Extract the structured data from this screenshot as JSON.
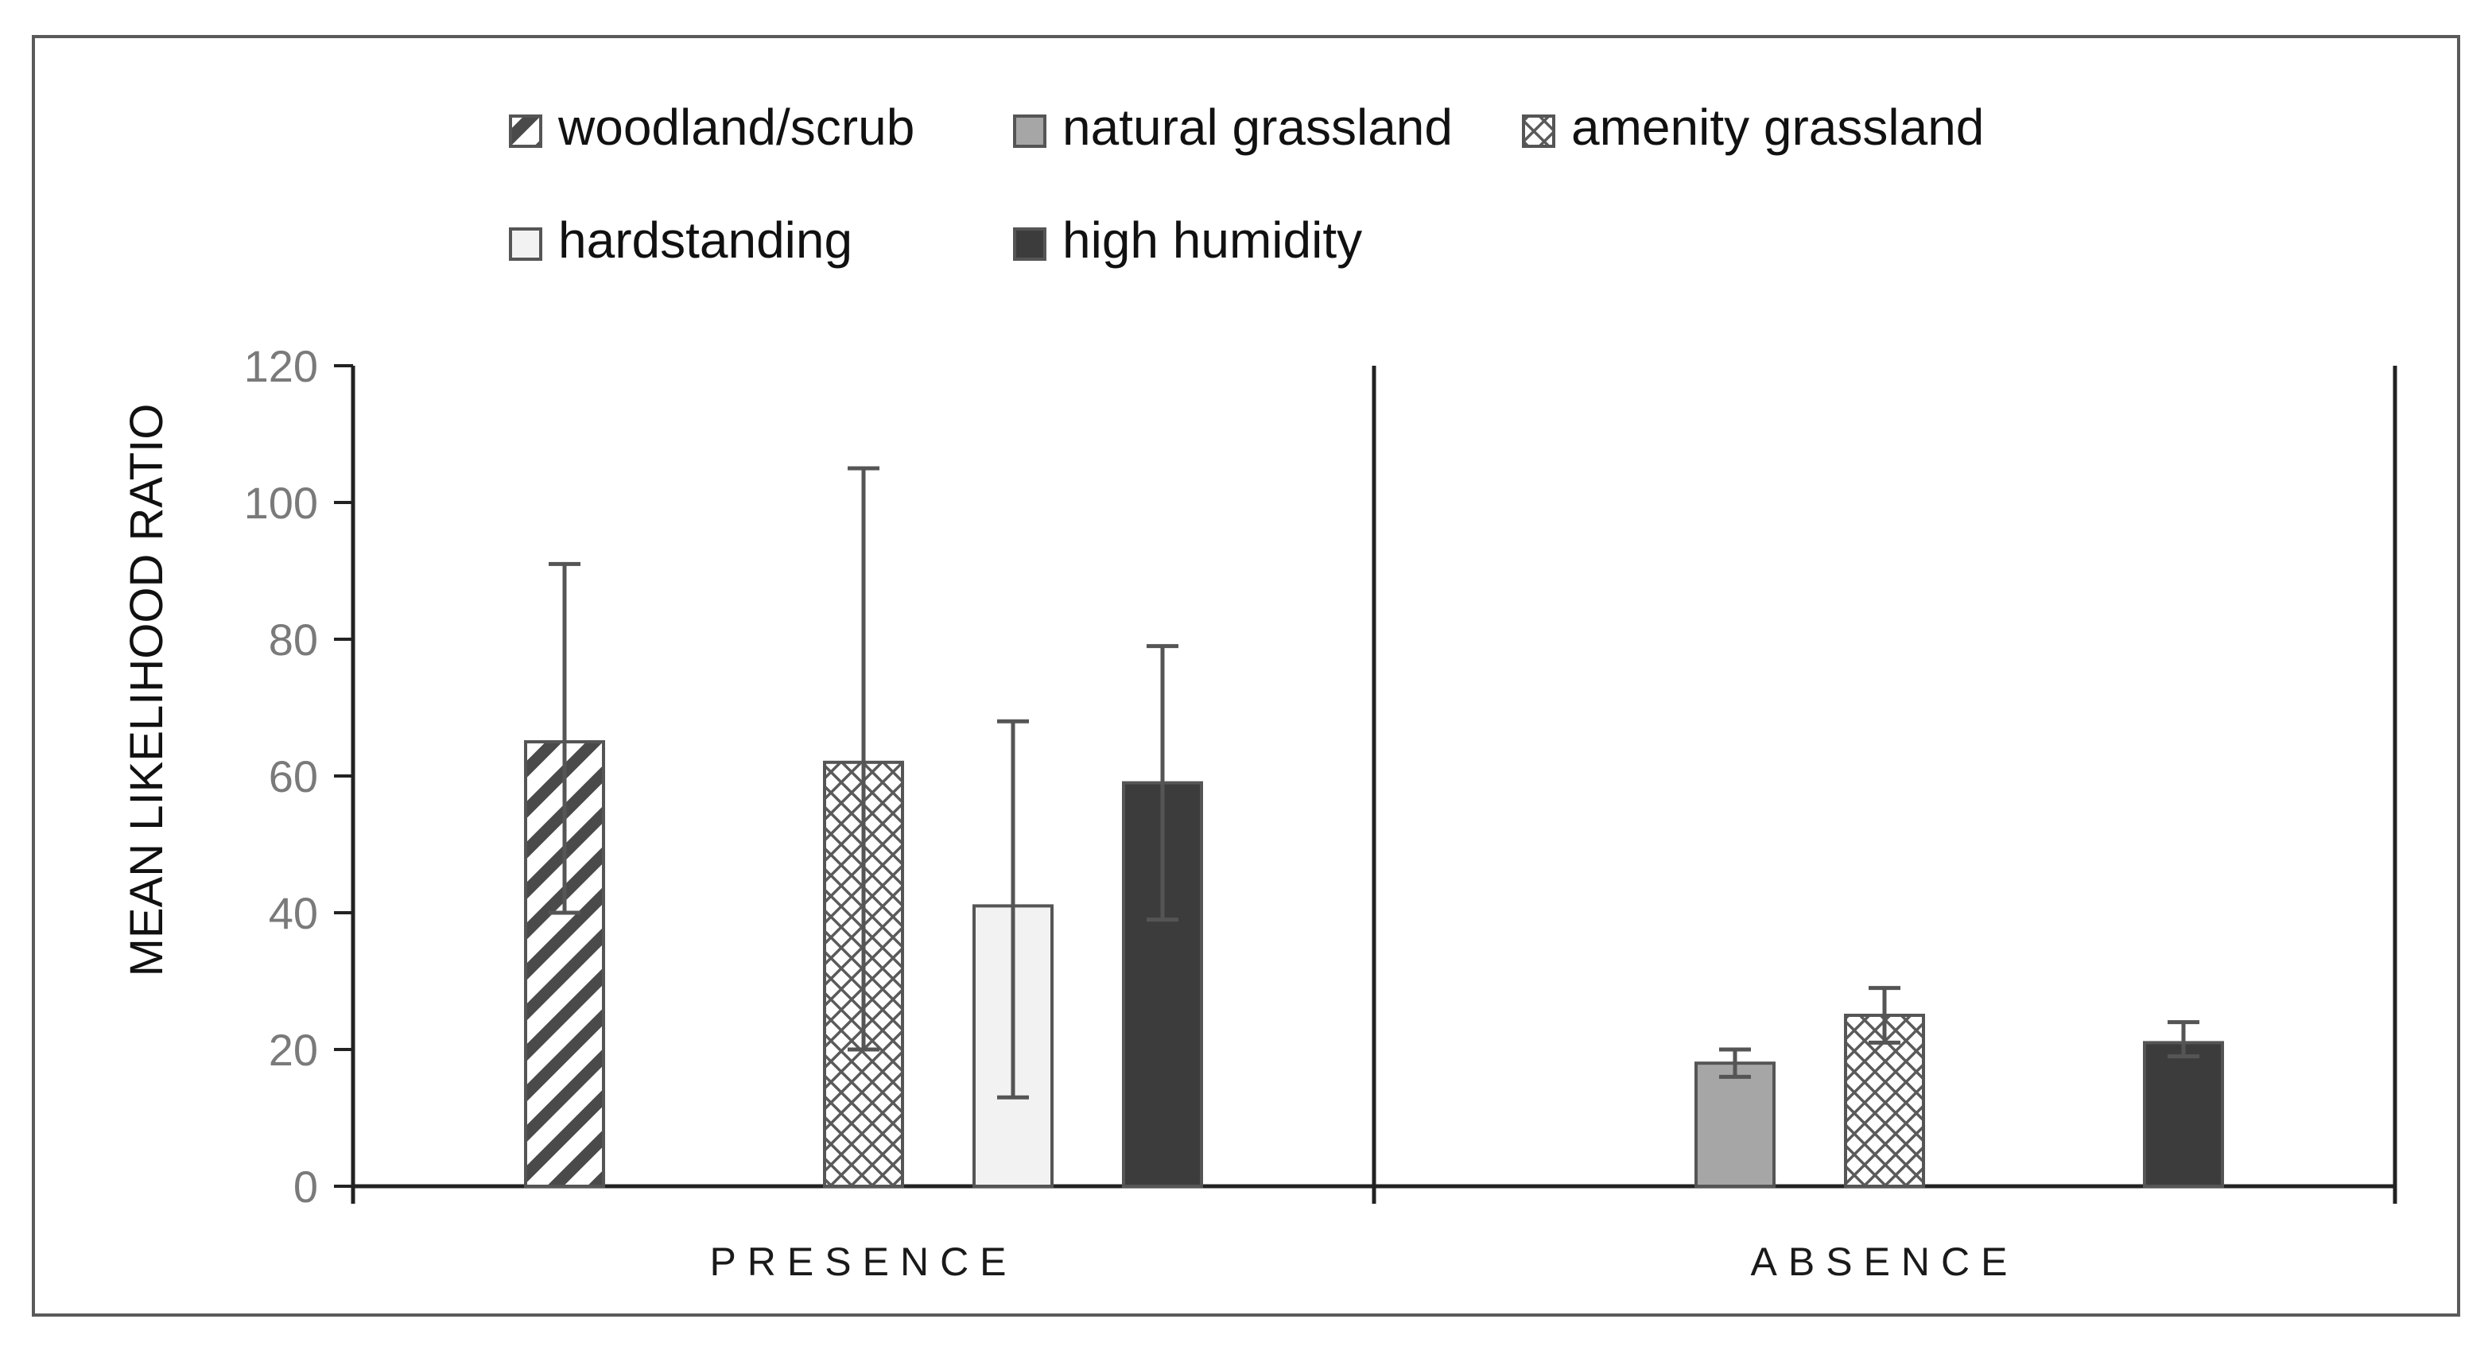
{
  "chart_data": {
    "type": "bar",
    "title": "",
    "xlabel": "",
    "ylabel": "MEAN LIKELIHOOD RATIO",
    "ylim": [
      0,
      120
    ],
    "yticks": [
      0,
      20,
      40,
      60,
      80,
      100,
      120
    ],
    "grid": false,
    "legend_position": "top",
    "categories": [
      "PRESENCE",
      "ABSENCE"
    ],
    "series": [
      {
        "name": "woodland/scrub",
        "pattern": "diagonal-stripes",
        "color": "#4a4a4a",
        "values": [
          65,
          null
        ],
        "err_low": [
          40,
          null
        ],
        "err_high": [
          91,
          null
        ]
      },
      {
        "name": "natural grassland",
        "pattern": "solid",
        "color": "#a6a6a6",
        "values": [
          null,
          18
        ],
        "err_low": [
          null,
          16
        ],
        "err_high": [
          null,
          20
        ]
      },
      {
        "name": "amenity grassland",
        "pattern": "crosshatch",
        "color": "#5a5a5a",
        "values": [
          62,
          25
        ],
        "err_low": [
          20,
          21
        ],
        "err_high": [
          105,
          29
        ]
      },
      {
        "name": "hardstanding",
        "pattern": "solid",
        "color": "#f2f2f2",
        "values": [
          41,
          null
        ],
        "err_low": [
          13,
          null
        ],
        "err_high": [
          68,
          null
        ]
      },
      {
        "name": "high humidity",
        "pattern": "solid",
        "color": "#3c3c3c",
        "values": [
          59,
          21
        ],
        "err_low": [
          39,
          19
        ],
        "err_high": [
          79,
          24
        ]
      }
    ]
  }
}
